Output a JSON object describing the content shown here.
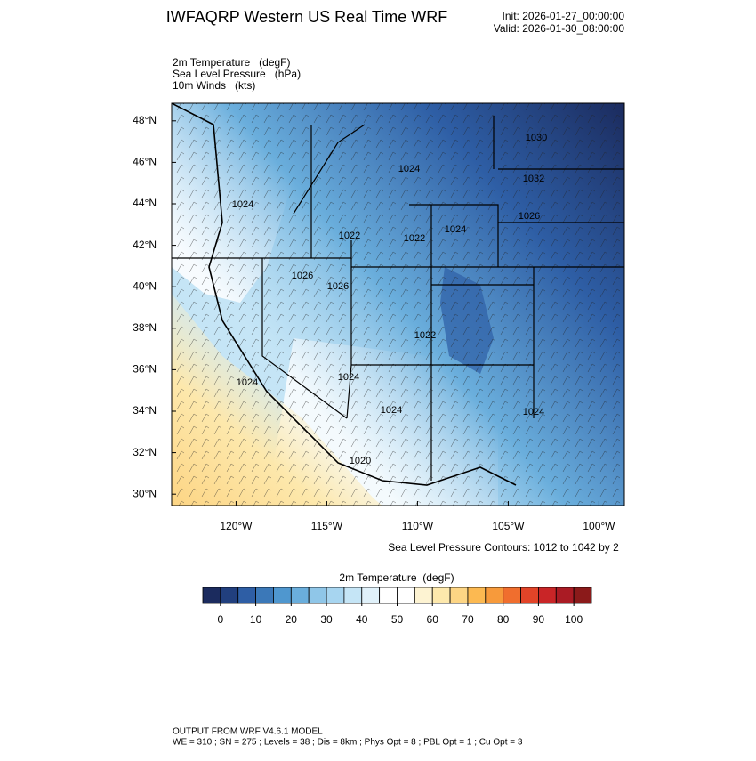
{
  "header": {
    "title": "IWFAQRP Western US Real Time WRF",
    "init": "Init: 2026-01-27_00:00:00",
    "valid": "Valid: 2026-01-30_08:00:00"
  },
  "fields": [
    "2m Temperature   (degF)",
    "Sea Level Pressure   (hPa)",
    "10m Winds   (kts)"
  ],
  "map": {
    "xlim": [
      -123.55,
      -98.6
    ],
    "ylim": [
      29.45,
      48.85
    ],
    "xticks": [
      {
        "value": -120,
        "label": "120°W"
      },
      {
        "value": -115,
        "label": "115°W"
      },
      {
        "value": -110,
        "label": "110°W"
      },
      {
        "value": -105,
        "label": "105°W"
      },
      {
        "value": -100,
        "label": "100°W"
      }
    ],
    "yticks": [
      {
        "value": 30,
        "label": "30°N"
      },
      {
        "value": 32,
        "label": "32°N"
      },
      {
        "value": 34,
        "label": "34°N"
      },
      {
        "value": 36,
        "label": "36°N"
      },
      {
        "value": 38,
        "label": "38°N"
      },
      {
        "value": 40,
        "label": "40°N"
      },
      {
        "value": 42,
        "label": "42°N"
      },
      {
        "value": 44,
        "label": "44°N"
      },
      {
        "value": 46,
        "label": "46°N"
      },
      {
        "value": 48,
        "label": "48°N"
      }
    ],
    "contour_labels": [
      "1030",
      "1032",
      "1026",
      "1024",
      "1024",
      "1022",
      "1022",
      "1024",
      "1026",
      "1026",
      "1022",
      "1024",
      "1024",
      "1024",
      "1024",
      "1020"
    ]
  },
  "contour_note": "Sea Level Pressure Contours: 1012 to 1042 by 2",
  "colorbar": {
    "title": "2m Temperature  (degF)",
    "lim": [
      -5,
      105
    ],
    "step": 5,
    "ticks": [
      0,
      10,
      20,
      30,
      40,
      50,
      60,
      70,
      80,
      90,
      100
    ],
    "colors": [
      "#1b2b5e",
      "#213f7e",
      "#2e5ea5",
      "#3b78b8",
      "#4f97cf",
      "#6aaedc",
      "#8fc6e8",
      "#a7d5f0",
      "#c5e5f6",
      "#e0f1fa",
      "#ffffff",
      "#ffffff",
      "#fdf3d2",
      "#fde8ac",
      "#fdd584",
      "#fcb951",
      "#f79a3b",
      "#f06e2e",
      "#e24428",
      "#c92527",
      "#aa1b24",
      "#8b1a1a"
    ]
  },
  "footer": [
    "OUTPUT FROM WRF V4.6.1 MODEL",
    "WE = 310 ; SN = 275 ; Levels = 38 ; Dis = 8km ; Phys Opt = 8 ; PBL Opt = 1 ; Cu Opt = 3"
  ]
}
